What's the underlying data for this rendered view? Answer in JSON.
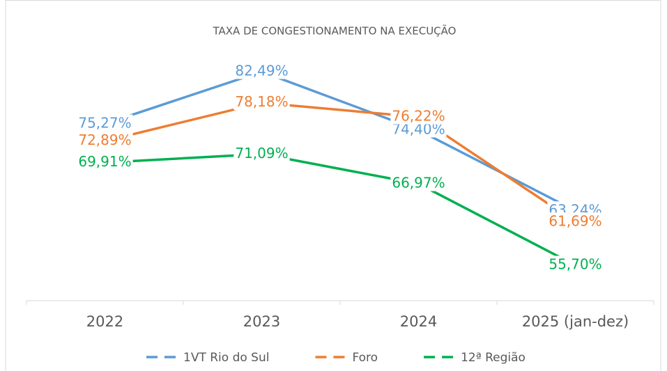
{
  "chart_data": {
    "type": "line",
    "title": "TAXA DE CONGESTIONAMENTO NA EXECUÇÃO",
    "categories": [
      "2022",
      "2023",
      "2024",
      "2025 (jan-dez)"
    ],
    "series": [
      {
        "name": "1VT Rio do Sul",
        "color": "#5b9bd5",
        "values": [
          75.27,
          82.49,
          74.4,
          63.24
        ],
        "value_labels": [
          "75,27%",
          "82,49%",
          "74,40%",
          "63,24%"
        ]
      },
      {
        "name": "Foro",
        "color": "#ed7d31",
        "values": [
          72.89,
          78.18,
          76.22,
          61.69
        ],
        "value_labels": [
          "72,89%",
          "78,18%",
          "76,22%",
          "61,69%"
        ]
      },
      {
        "name": "12ª Região",
        "color": "#00b050",
        "values": [
          69.91,
          71.09,
          66.97,
          55.7
        ],
        "value_labels": [
          "69,91%",
          "71,09%",
          "66,97%",
          "55,70%"
        ]
      }
    ]
  }
}
